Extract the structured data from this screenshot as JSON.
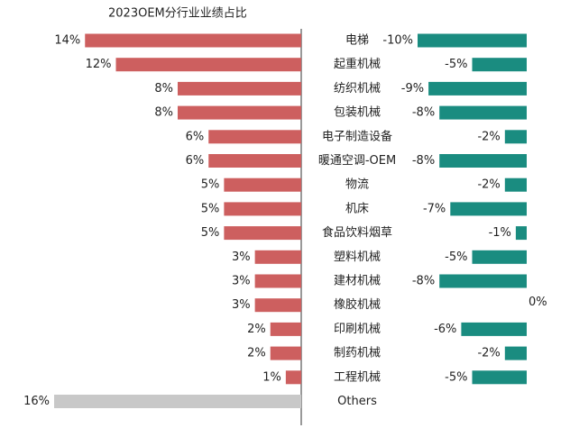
{
  "chart_data": {
    "type": "diverging-bar",
    "title": "2023OEM分行业业绩占比",
    "categories": [
      "电梯",
      "起重机械",
      "纺织机械",
      "包装机械",
      "电子制造设备",
      "暖通空调-OEM",
      "物流",
      "机床",
      "食品饮料烟草",
      "塑料机械",
      "建材机械",
      "橡胶机械",
      "印刷机械",
      "制药机械",
      "工程机械",
      "Others"
    ],
    "series": [
      {
        "values": [
          14,
          12,
          8,
          8,
          6,
          6,
          5,
          5,
          5,
          3,
          3,
          3,
          2,
          2,
          1,
          16
        ],
        "value_labels": [
          "14%",
          "12%",
          "8%",
          "8%",
          "6%",
          "6%",
          "5%",
          "5%",
          "5%",
          "3%",
          "3%",
          "3%",
          "2%",
          "2%",
          "1%",
          "16%"
        ],
        "colors": [
          "#cd5f5f",
          "#cd5f5f",
          "#cd5f5f",
          "#cd5f5f",
          "#cd5f5f",
          "#cd5f5f",
          "#cd5f5f",
          "#cd5f5f",
          "#cd5f5f",
          "#cd5f5f",
          "#cd5f5f",
          "#cd5f5f",
          "#cd5f5f",
          "#cd5f5f",
          "#cd5f5f",
          "#c8c8c8"
        ]
      },
      {
        "values": [
          -10,
          -5,
          -9,
          -8,
          -2,
          -8,
          -2,
          -7,
          -1,
          -5,
          -8,
          0,
          -6,
          -2,
          -5,
          null
        ],
        "value_labels": [
          "-10%",
          "-5%",
          "-9%",
          "-8%",
          "-2%",
          "-8%",
          "-2%",
          "-7%",
          "-1%",
          "-5%",
          "-8%",
          "0%",
          "-6%",
          "-2%",
          "-5%",
          null
        ],
        "color": "#1a8c80"
      }
    ]
  }
}
